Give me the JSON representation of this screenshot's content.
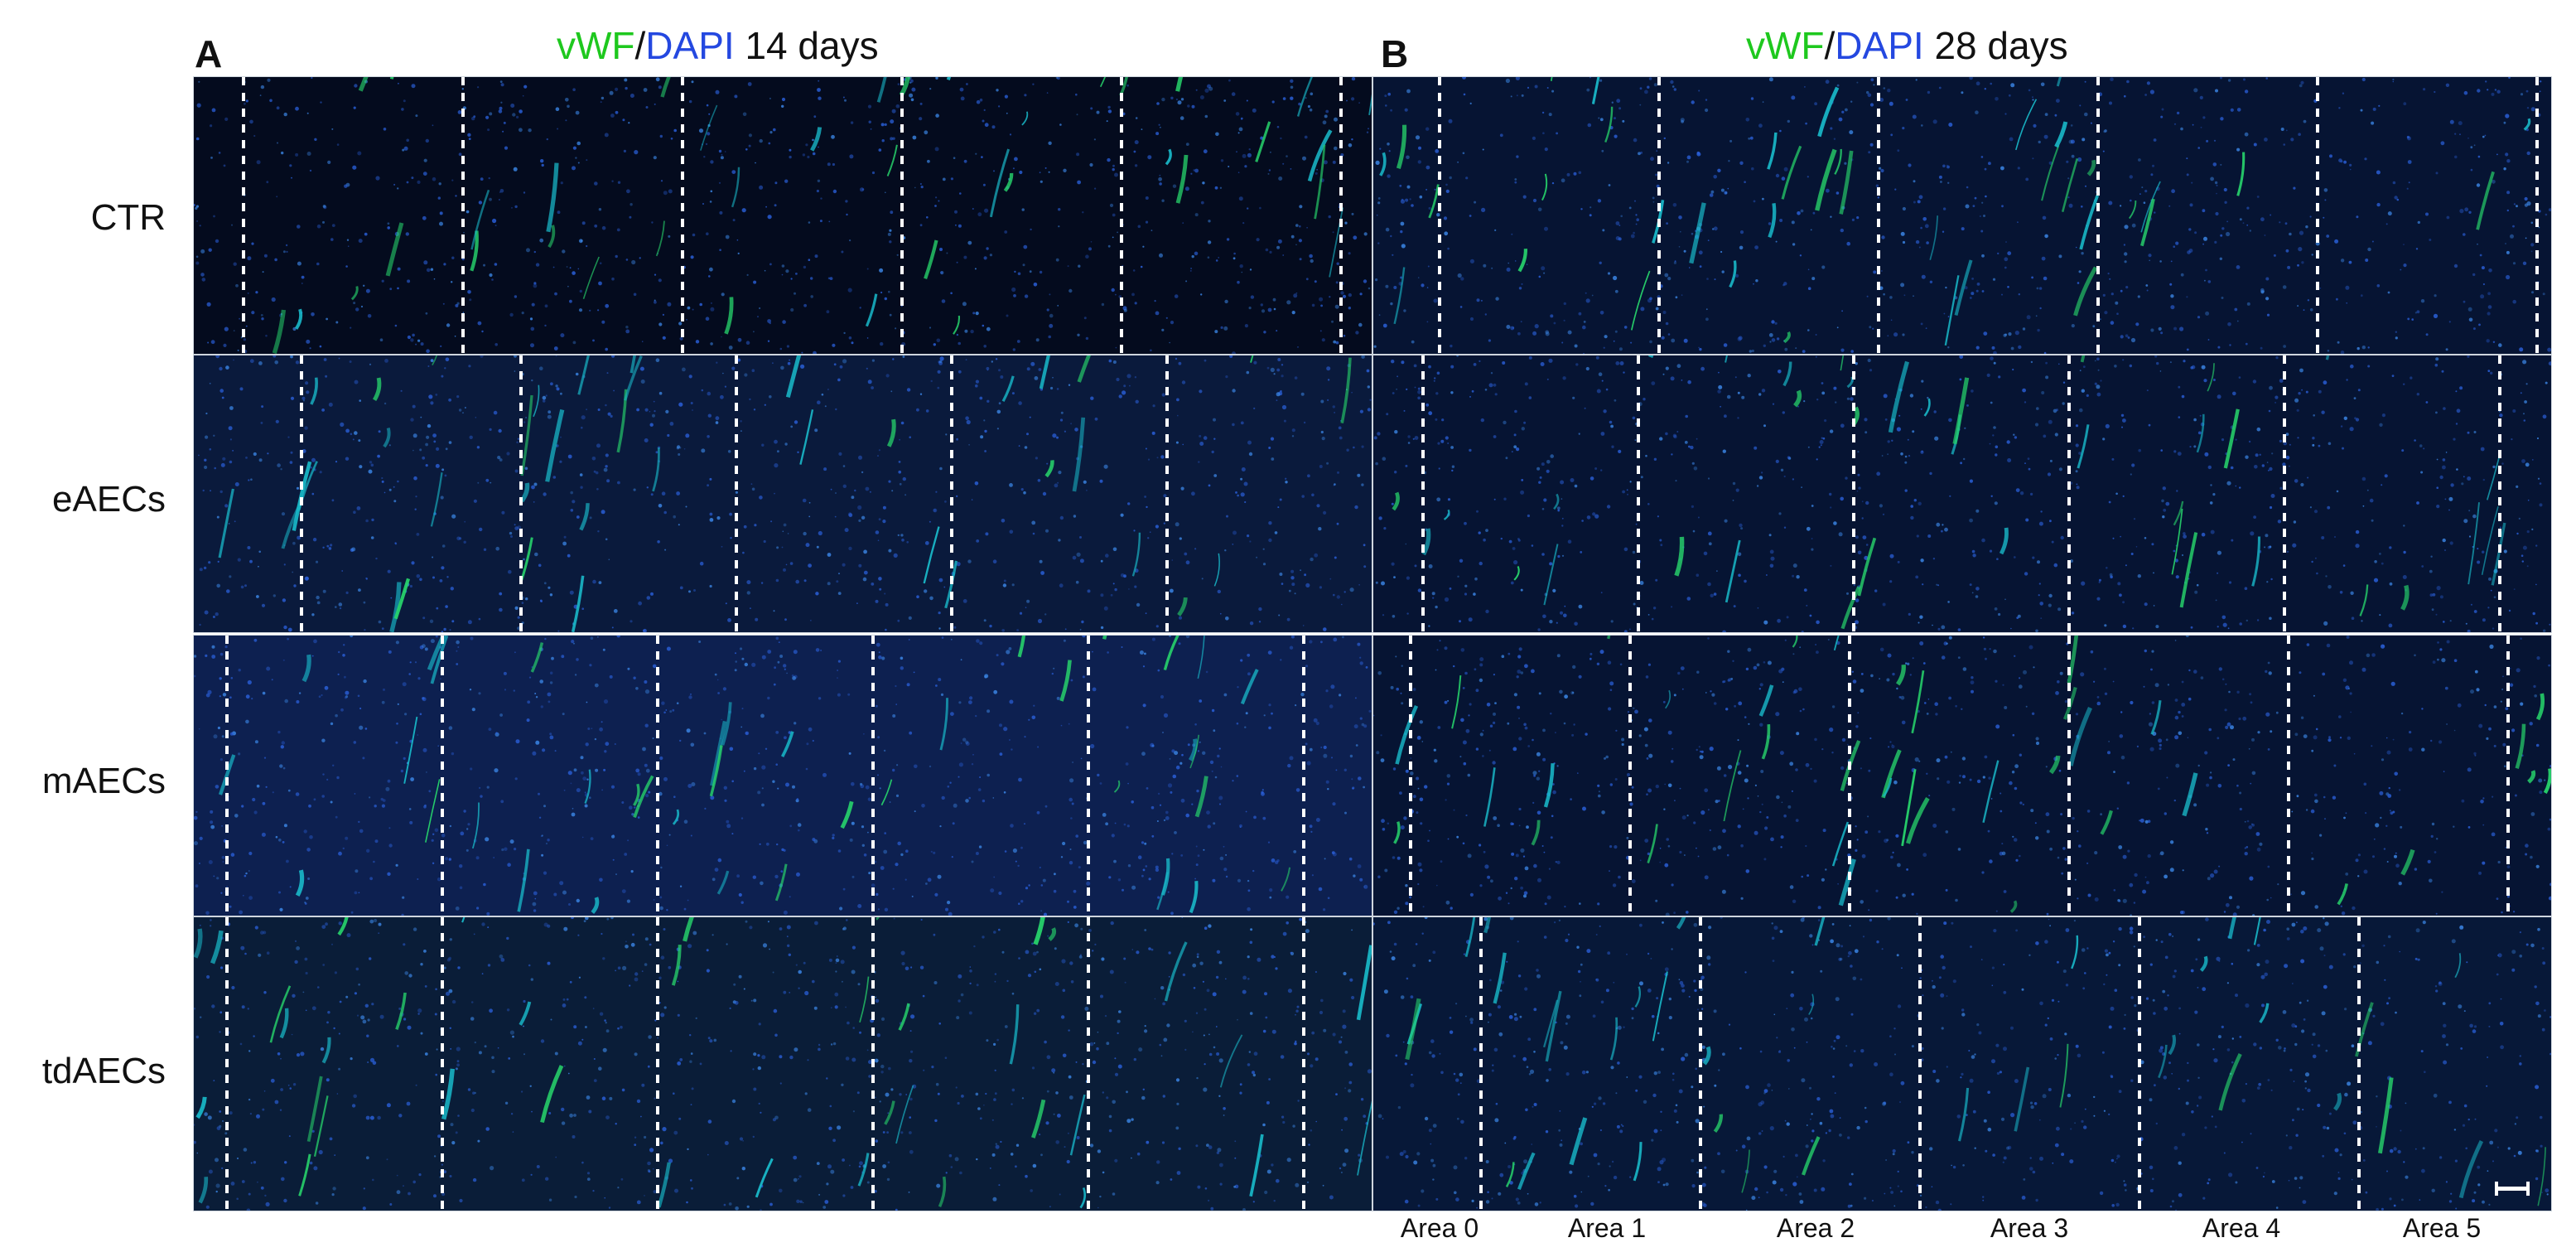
{
  "panel_a": {
    "letter": "A",
    "title_stain1": "vWF",
    "title_sep": "/",
    "title_stain2": "DAPI",
    "title_time": " 14 days"
  },
  "panel_b": {
    "letter": "B",
    "title_stain1": "vWF",
    "title_sep": "/",
    "title_stain2": "DAPI",
    "title_time": " 28 days"
  },
  "rows": [
    "CTR",
    "eAECs",
    "mAECs",
    "tdAECs"
  ],
  "area_labels": [
    "Area 0",
    "Area 1",
    "Area 2",
    "Area 3",
    "Area 4",
    "Area 5"
  ],
  "colors": {
    "vwf_green": "#1ec81e",
    "dapi_blue": "#2448e0",
    "tissue_background": "#050d22",
    "divider_dash": "#ffffff"
  }
}
